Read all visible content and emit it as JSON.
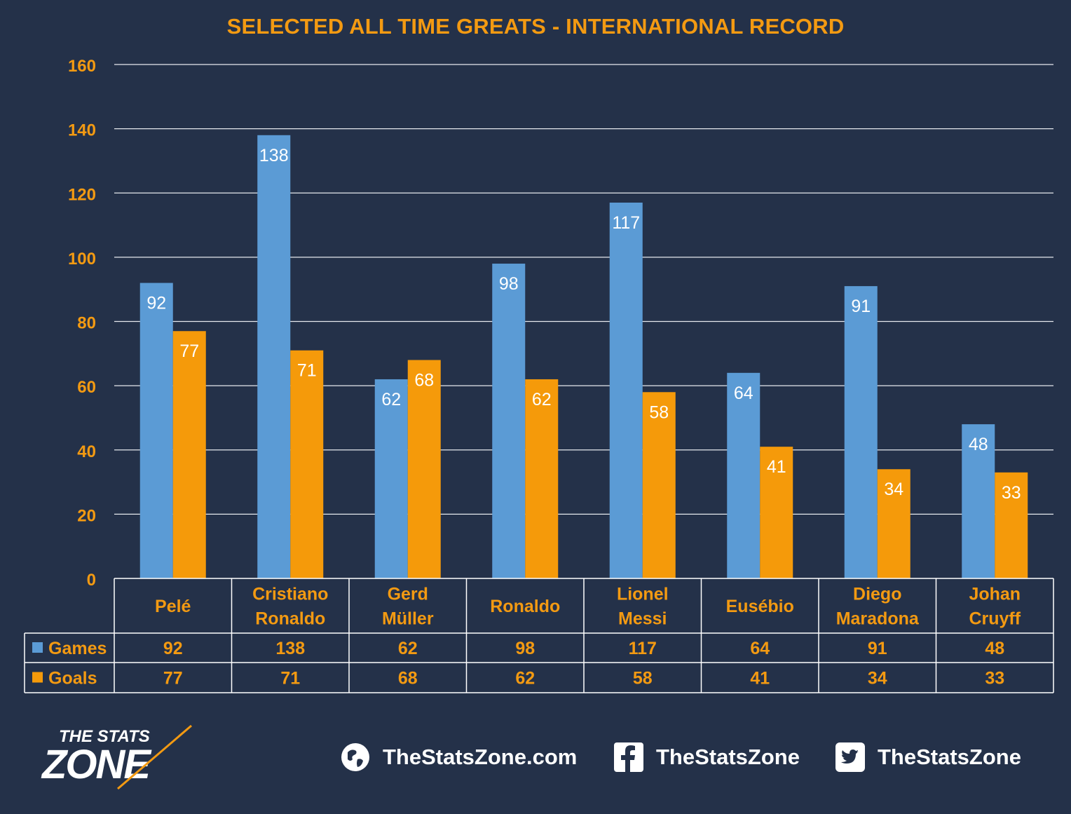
{
  "chart_data": {
    "type": "bar",
    "title": "SELECTED ALL TIME GREATS - INTERNATIONAL RECORD",
    "categories": [
      [
        "Pelé"
      ],
      [
        "Cristiano",
        "Ronaldo"
      ],
      [
        "Gerd",
        "Müller"
      ],
      [
        "Ronaldo"
      ],
      [
        "Lionel",
        "Messi"
      ],
      [
        "Eusébio"
      ],
      [
        "Diego",
        "Maradona"
      ],
      [
        "Johan",
        "Cruyff"
      ]
    ],
    "series": [
      {
        "name": "Games",
        "color": "#5b9bd5",
        "values": [
          92,
          138,
          62,
          98,
          117,
          64,
          91,
          48
        ]
      },
      {
        "name": "Goals",
        "color": "#f59a0a",
        "values": [
          77,
          71,
          68,
          62,
          58,
          41,
          34,
          33
        ]
      }
    ],
    "ylim": [
      0,
      160
    ],
    "yticks": [
      0,
      20,
      40,
      60,
      80,
      100,
      120,
      140,
      160
    ],
    "grid": true,
    "legend": "data table"
  },
  "footer": {
    "logo_top": "THE STATS",
    "logo_bottom": "ZONE",
    "website": "TheStatsZone.com",
    "facebook": "TheStatsZone",
    "twitter": "TheStatsZone",
    "icons": [
      "globe-icon",
      "facebook-icon",
      "twitter-icon"
    ]
  },
  "colors": {
    "background": "#243149",
    "accent": "#f39a12",
    "games": "#5b9bd5",
    "goals": "#f59a0a"
  }
}
